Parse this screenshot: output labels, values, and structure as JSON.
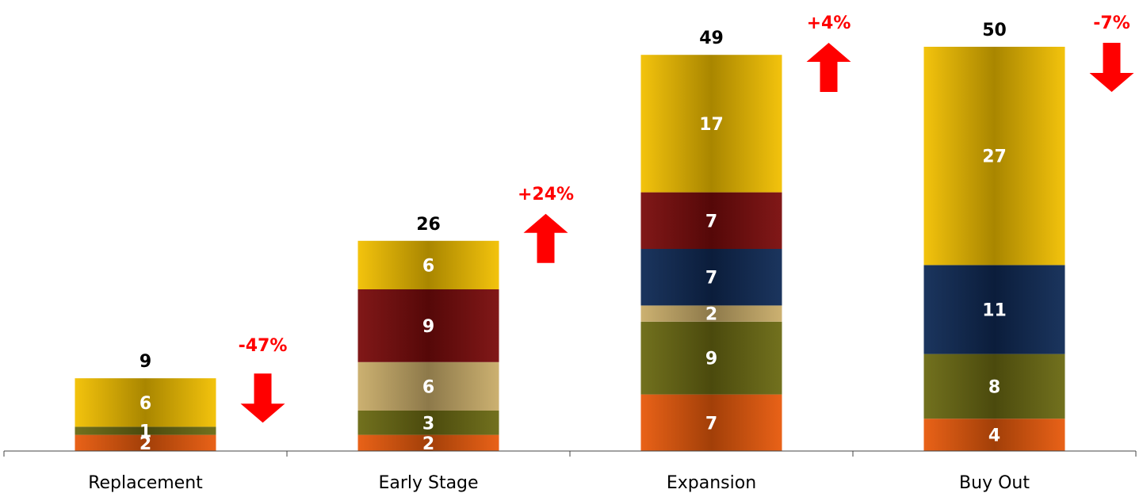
{
  "chart_data": {
    "type": "bar",
    "stacked": true,
    "categories": [
      "Replacement",
      "Early Stage",
      "Expansion",
      "Buy Out"
    ],
    "series": [
      {
        "values": [
          2,
          2,
          7,
          4
        ],
        "color": "#e85a0c"
      },
      {
        "values": [
          1,
          3,
          9,
          8
        ],
        "color": "#6b6a12"
      },
      {
        "values": [
          0,
          6,
          2,
          0
        ],
        "color": "#c9ad6a"
      },
      {
        "values": [
          0,
          0,
          7,
          11
        ],
        "color": "#0f2a55"
      },
      {
        "values": [
          0,
          9,
          7,
          0
        ],
        "color": "#7a0c0c"
      },
      {
        "values": [
          6,
          6,
          17,
          27
        ],
        "color": "#f2c000"
      }
    ],
    "totals": [
      9,
      26,
      49,
      50
    ],
    "changes": [
      {
        "label": "-47%",
        "direction": "down"
      },
      {
        "label": "+24%",
        "direction": "up"
      },
      {
        "label": "+4%",
        "direction": "up"
      },
      {
        "label": "-7%",
        "direction": "down"
      }
    ],
    "change_color": "#ff0000",
    "ylim": [
      0,
      50
    ],
    "grid": false,
    "legend": "none",
    "title": "",
    "xlabel": "",
    "ylabel": ""
  }
}
